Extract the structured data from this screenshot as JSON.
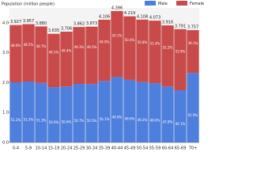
{
  "chart_data": {
    "type": "stacked_bar",
    "title": "Population (million people)",
    "categories": [
      "0-4",
      "5-9",
      "10-14",
      "15-19",
      "20-24",
      "25-29",
      "30-34",
      "35-39",
      "40-44",
      "45-49",
      "50-54",
      "55-59",
      "60-64",
      "65-69",
      "70+"
    ],
    "series": [
      {
        "name": "Male",
        "color": "#4f7fdc",
        "values": [
          2.011,
          2.038,
          1.99,
          1.85,
          1.875,
          1.958,
          1.956,
          2.057,
          2.194,
          2.093,
          2.021,
          1.979,
          1.872,
          1.748,
          2.326
        ],
        "value_labels": [
          "51.2%",
          "51.5%",
          "51.3%",
          "50.9%",
          "50.6%",
          "50.7%",
          "50.5%",
          "50.1%",
          "49.9%",
          "49.6%",
          "49.2%",
          "48.6%",
          "47.8%",
          "46.1%",
          "61.9%"
        ]
      },
      {
        "name": "Female",
        "color": "#c94a4a",
        "values": [
          1.916,
          1.919,
          1.89,
          1.785,
          1.831,
          1.904,
          1.917,
          2.049,
          2.202,
          2.126,
          2.087,
          2.094,
          2.044,
          2.043,
          1.431
        ],
        "value_labels": [
          "48.8%",
          "48.5%",
          "48.7%",
          "49.1%",
          "49.4%",
          "49.3%",
          "49.5%",
          "49.9%",
          "50.1%",
          "50.4%",
          "50.8%",
          "51.4%",
          "52.2%",
          "53.9%",
          "38.1%"
        ]
      }
    ],
    "total_labels": [
      "3.927",
      "3.957",
      "3.880",
      "3.635",
      "3.706",
      "3.862",
      "3.873",
      "4.106",
      "4.396",
      "4.219",
      "4.108",
      "4.073",
      "3.916",
      "3.791",
      "3.757"
    ],
    "ylim": [
      0,
      4.5
    ],
    "yticks": [
      {
        "value": 0,
        "label": "0.0"
      },
      {
        "value": 1,
        "label": "1.0"
      },
      {
        "value": 2,
        "label": "2.0"
      },
      {
        "value": 3,
        "label": "3.0"
      },
      {
        "value": 4,
        "label": "4.0"
      }
    ],
    "grid": false,
    "legend": "top-right"
  }
}
